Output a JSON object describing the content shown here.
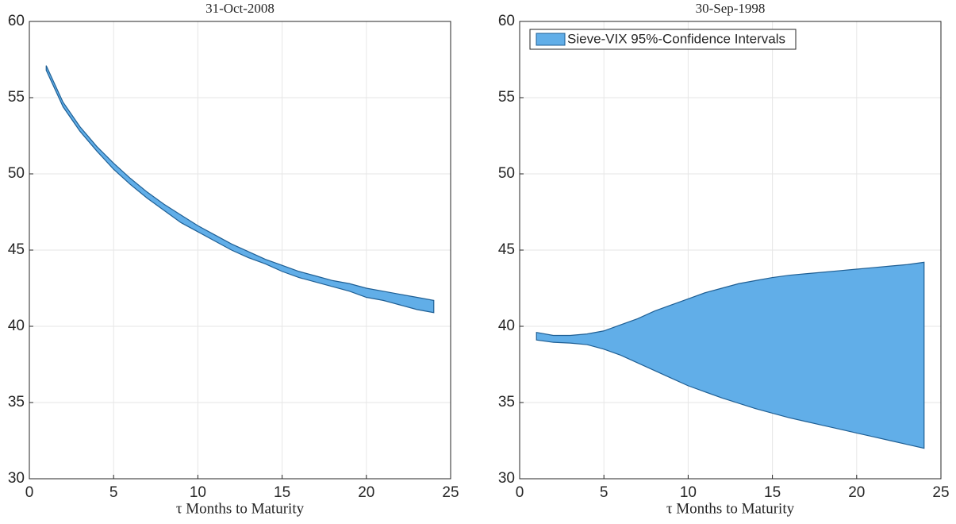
{
  "chart_data": [
    {
      "type": "band",
      "title": "31-Oct-2008",
      "xlabel": "τ Months to Maturity",
      "x": [
        1,
        2,
        3,
        4,
        5,
        6,
        7,
        8,
        9,
        10,
        11,
        12,
        13,
        14,
        15,
        16,
        17,
        18,
        19,
        20,
        21,
        22,
        23,
        24
      ],
      "series": [
        {
          "color": "#61aee8",
          "upper": [
            57.1,
            54.7,
            53.1,
            51.8,
            50.7,
            49.7,
            48.8,
            48.0,
            47.3,
            46.6,
            46.0,
            45.4,
            44.9,
            44.4,
            44.0,
            43.6,
            43.3,
            43.0,
            42.8,
            42.5,
            42.3,
            42.1,
            41.9,
            41.7
          ],
          "lower": [
            56.8,
            54.4,
            52.8,
            51.5,
            50.3,
            49.3,
            48.4,
            47.6,
            46.8,
            46.2,
            45.6,
            45.0,
            44.5,
            44.1,
            43.6,
            43.2,
            42.9,
            42.6,
            42.3,
            41.9,
            41.7,
            41.4,
            41.1,
            40.9
          ]
        }
      ],
      "xlim": [
        0,
        25
      ],
      "xticks": [
        0,
        5,
        10,
        15,
        20,
        25
      ],
      "ylim": [
        30,
        60
      ],
      "yticks": [
        30,
        35,
        40,
        45,
        50,
        55,
        60
      ],
      "grid": true
    },
    {
      "type": "band",
      "title": "30-Sep-1998",
      "xlabel": "τ Months to Maturity",
      "x": [
        1,
        2,
        3,
        4,
        5,
        6,
        7,
        8,
        9,
        10,
        11,
        12,
        13,
        14,
        15,
        16,
        17,
        18,
        19,
        20,
        21,
        22,
        23,
        24
      ],
      "series": [
        {
          "name": "Sieve-VIX 95%-Confidence Intervals",
          "color": "#61aee8",
          "upper": [
            39.6,
            39.4,
            39.4,
            39.5,
            39.7,
            40.1,
            40.5,
            41.0,
            41.4,
            41.8,
            42.2,
            42.5,
            42.8,
            43.0,
            43.2,
            43.35,
            43.45,
            43.55,
            43.65,
            43.75,
            43.85,
            43.95,
            44.05,
            44.2
          ],
          "lower": [
            39.1,
            38.95,
            38.9,
            38.8,
            38.5,
            38.1,
            37.6,
            37.1,
            36.6,
            36.1,
            35.7,
            35.3,
            34.95,
            34.6,
            34.3,
            34.0,
            33.75,
            33.5,
            33.25,
            33.0,
            32.75,
            32.5,
            32.25,
            32.0
          ]
        }
      ],
      "xlim": [
        0,
        25
      ],
      "xticks": [
        0,
        5,
        10,
        15,
        20,
        25
      ],
      "ylim": [
        30,
        60
      ],
      "yticks": [
        30,
        35,
        40,
        45,
        50,
        55,
        60
      ],
      "grid": true,
      "legend": "upper left"
    }
  ]
}
